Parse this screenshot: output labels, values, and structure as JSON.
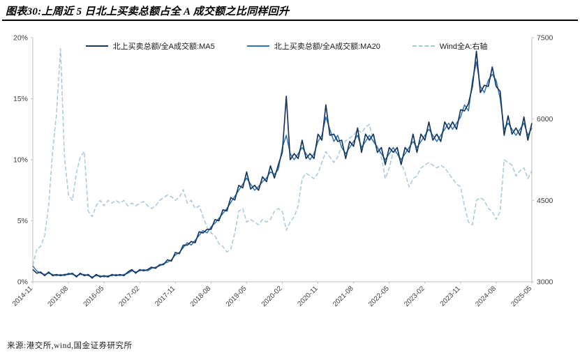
{
  "title": "图表30:上周近 5 日北上买卖总额占全 A 成交额之比同样回升",
  "source": "来源:港交所,wind,国金证券研究所",
  "colors": {
    "ma5": "#17375E",
    "ma20": "#2E75B6",
    "index": "#A6C9DA",
    "axis_text": "#404040",
    "axis_line": "#BFBFBF"
  },
  "chart_data": {
    "type": "line",
    "title": "图表30:上周近 5 日北上买卖总额占全 A 成交额之比同样回升",
    "legend_position": "top",
    "grid": false,
    "x_axis": {
      "start": "2014-11",
      "end": "2025-05",
      "frequency": "monthly",
      "tick_indices": [
        0,
        9,
        18,
        27,
        36,
        45,
        54,
        63,
        72,
        81,
        90,
        99,
        108,
        117,
        126
      ],
      "tick_labels": [
        "2014-11",
        "2015-08",
        "2016-05",
        "2017-02",
        "2017-11",
        "2018-08",
        "2019-05",
        "2020-02",
        "2020-11",
        "2021-08",
        "2022-05",
        "2023-02",
        "2023-11",
        "2024-08",
        "2025-05"
      ]
    },
    "left_axis": {
      "range": [
        0,
        20
      ],
      "ticks": [
        {
          "value": 0,
          "label": "0%"
        },
        {
          "value": 5,
          "label": "5%"
        },
        {
          "value": 10,
          "label": "10%"
        },
        {
          "value": 15,
          "label": "15%"
        },
        {
          "value": 20,
          "label": "20%"
        }
      ]
    },
    "right_axis": {
      "range": [
        3000,
        7500
      ],
      "ticks": [
        {
          "value": 3000,
          "label": "3000"
        },
        {
          "value": 4500,
          "label": "4500"
        },
        {
          "value": 6000,
          "label": "6000"
        },
        {
          "value": 7500,
          "label": "7500"
        }
      ]
    },
    "series": [
      {
        "name": "北上买卖总额/全A成交额:MA5",
        "axis": "left",
        "style": "solid",
        "unit": "%",
        "values": [
          1.0,
          0.7,
          0.8,
          0.5,
          0.8,
          0.5,
          0.6,
          0.5,
          0.6,
          0.6,
          0.7,
          0.4,
          0.7,
          0.5,
          0.6,
          0.3,
          0.6,
          0.4,
          0.5,
          0.4,
          0.6,
          0.5,
          0.6,
          0.5,
          0.8,
          1.0,
          0.7,
          1.0,
          0.9,
          1.0,
          1.2,
          1.1,
          1.4,
          1.4,
          1.8,
          1.7,
          2.4,
          2.3,
          3.0,
          3.0,
          3.3,
          3.2,
          4.1,
          4.0,
          4.3,
          4.3,
          5.1,
          5.0,
          5.9,
          5.8,
          6.9,
          6.7,
          7.9,
          7.7,
          9.0,
          7.6,
          7.9,
          7.5,
          8.6,
          8.2,
          9.5,
          8.5,
          9.6,
          10.6,
          15.2,
          10.0,
          10.5,
          10.1,
          11.6,
          10.1,
          10.5,
          10.1,
          12.1,
          11.6,
          14.5,
          12.0,
          12.1,
          11.5,
          11.6,
          10.1,
          11.5,
          11.1,
          12.6,
          10.6,
          12.1,
          11.6,
          12.1,
          10.6,
          11.0,
          9.6,
          11.0,
          10.6,
          11.0,
          9.6,
          11.0,
          10.6,
          12.1,
          10.6,
          12.1,
          11.6,
          13.1,
          11.6,
          12.1,
          11.5,
          13.1,
          12.5,
          13.1,
          12.5,
          14.1,
          14.0,
          14.6,
          16.0,
          18.9,
          15.5,
          16.1,
          16.0,
          17.6,
          16.0,
          15.6,
          12.0,
          13.6,
          12.1,
          12.6,
          12.0,
          13.5,
          11.6,
          13.0
        ]
      },
      {
        "name": "北上买卖总额/全A成交额:MA20",
        "axis": "left",
        "style": "solid",
        "unit": "%",
        "values": [
          1.3,
          0.9,
          0.7,
          0.6,
          0.7,
          0.6,
          0.5,
          0.6,
          0.5,
          0.7,
          0.6,
          0.5,
          0.6,
          0.6,
          0.5,
          0.4,
          0.5,
          0.5,
          0.4,
          0.5,
          0.5,
          0.6,
          0.5,
          0.6,
          0.7,
          0.9,
          0.8,
          0.9,
          1.0,
          0.9,
          1.1,
          1.2,
          1.3,
          1.5,
          1.6,
          1.8,
          2.2,
          2.4,
          2.8,
          3.2,
          3.0,
          3.4,
          3.8,
          4.2,
          4.0,
          4.5,
          4.8,
          5.2,
          5.6,
          6.0,
          6.5,
          7.0,
          7.5,
          8.0,
          8.5,
          8.0,
          7.5,
          7.8,
          8.2,
          8.5,
          9.0,
          8.8,
          9.2,
          11.0,
          12.0,
          10.5,
          10.0,
          10.5,
          11.0,
          10.5,
          10.0,
          10.5,
          11.5,
          12.0,
          13.5,
          12.5,
          11.5,
          12.0,
          11.0,
          10.5,
          11.0,
          11.5,
          12.0,
          11.0,
          11.5,
          12.0,
          11.5,
          11.0,
          10.5,
          10.0,
          10.5,
          11.0,
          10.5,
          10.0,
          10.5,
          11.0,
          11.5,
          11.0,
          11.5,
          12.0,
          12.5,
          12.0,
          11.5,
          12.0,
          12.5,
          13.0,
          12.5,
          13.0,
          13.5,
          14.5,
          14.0,
          16.5,
          18.0,
          16.0,
          15.5,
          16.5,
          17.0,
          16.5,
          15.0,
          12.5,
          13.0,
          12.5,
          12.0,
          12.5,
          13.0,
          12.0,
          12.6
        ]
      },
      {
        "name": "Wind全A:右轴",
        "axis": "right",
        "style": "dashed",
        "unit": "index points",
        "values": [
          3300,
          3600,
          3650,
          3850,
          4400,
          5400,
          6100,
          7300,
          5300,
          4600,
          4500,
          5000,
          5300,
          5400,
          4300,
          4200,
          4400,
          4500,
          4400,
          4500,
          4450,
          4500,
          4450,
          4500,
          4400,
          4450,
          4400,
          4450,
          4480,
          4400,
          4350,
          4400,
          4500,
          4550,
          4600,
          4570,
          4500,
          4560,
          4700,
          4450,
          4500,
          4350,
          4400,
          4200,
          4000,
          3900,
          3850,
          3700,
          3650,
          3550,
          3600,
          3900,
          4300,
          4350,
          4100,
          4150,
          4100,
          4050,
          4150,
          4100,
          4150,
          4300,
          4350,
          4300,
          3950,
          4100,
          4200,
          4400,
          4900,
          5000,
          4950,
          4900,
          5000,
          5200,
          5400,
          5300,
          5200,
          5300,
          5500,
          5600,
          5650,
          5700,
          5800,
          5750,
          5850,
          5900,
          5600,
          5500,
          5300,
          4900,
          5100,
          5400,
          5350,
          5200,
          5000,
          4750,
          4900,
          4950,
          5100,
          5150,
          5200,
          5150,
          5100,
          5150,
          5100,
          5000,
          4900,
          4800,
          4750,
          4400,
          4100,
          4050,
          4500,
          4550,
          4500,
          4350,
          4300,
          4150,
          4300,
          5250,
          5200,
          5150,
          4950,
          5050,
          5100,
          4900,
          5050
        ]
      }
    ]
  }
}
